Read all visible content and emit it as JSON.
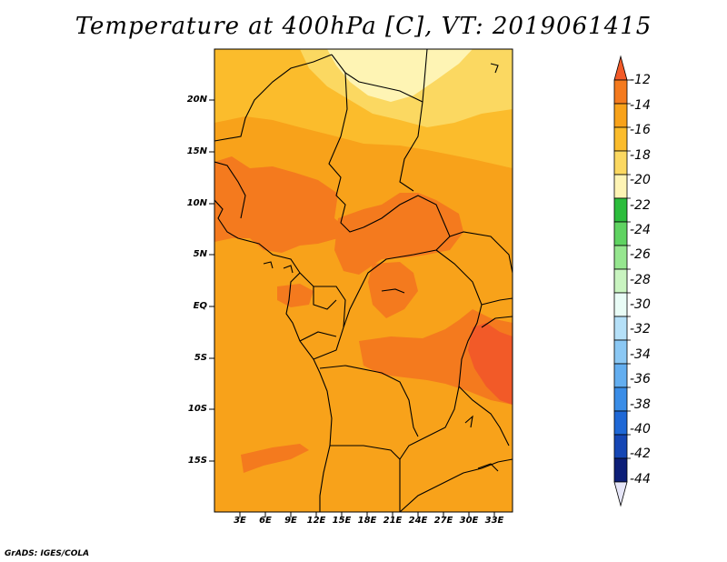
{
  "title": "Temperature at 400hPa [C], VT: 2019061415",
  "footer": "GrADS: IGES/COLA",
  "map": {
    "lat_labels": [
      "20N",
      "15N",
      "10N",
      "5N",
      "EQ",
      "5S",
      "10S",
      "15S"
    ],
    "lon_labels": [
      "3E",
      "6E",
      "9E",
      "12E",
      "15E",
      "18E",
      "21E",
      "24E",
      "27E",
      "30E",
      "33E"
    ]
  },
  "colorbar": {
    "labels": [
      "-12",
      "-14",
      "-16",
      "-18",
      "-20",
      "-22",
      "-24",
      "-26",
      "-28",
      "-30",
      "-32",
      "-34",
      "-36",
      "-38",
      "-40",
      "-42",
      "-44"
    ],
    "colors": [
      "#f25a28",
      "#f47a1e",
      "#f8a21a",
      "#fbbc2c",
      "#fbd861",
      "#fef4b4",
      "#2cbd3c",
      "#5fd361",
      "#96e68f",
      "#c9f4c0",
      "#e9fcf6",
      "#b5e0f8",
      "#8bc8f4",
      "#63aef0",
      "#3a8de7",
      "#1f68d6",
      "#1546b4",
      "#0d1f78",
      "#e6e6f8"
    ]
  },
  "fill_colors": {
    "base": "#f8a21a",
    "warm": "#f47a1e",
    "warmest": "#f25a28",
    "cool": "#fbbc2c",
    "cooler": "#fbd861",
    "coolest": "#fef4b4"
  }
}
